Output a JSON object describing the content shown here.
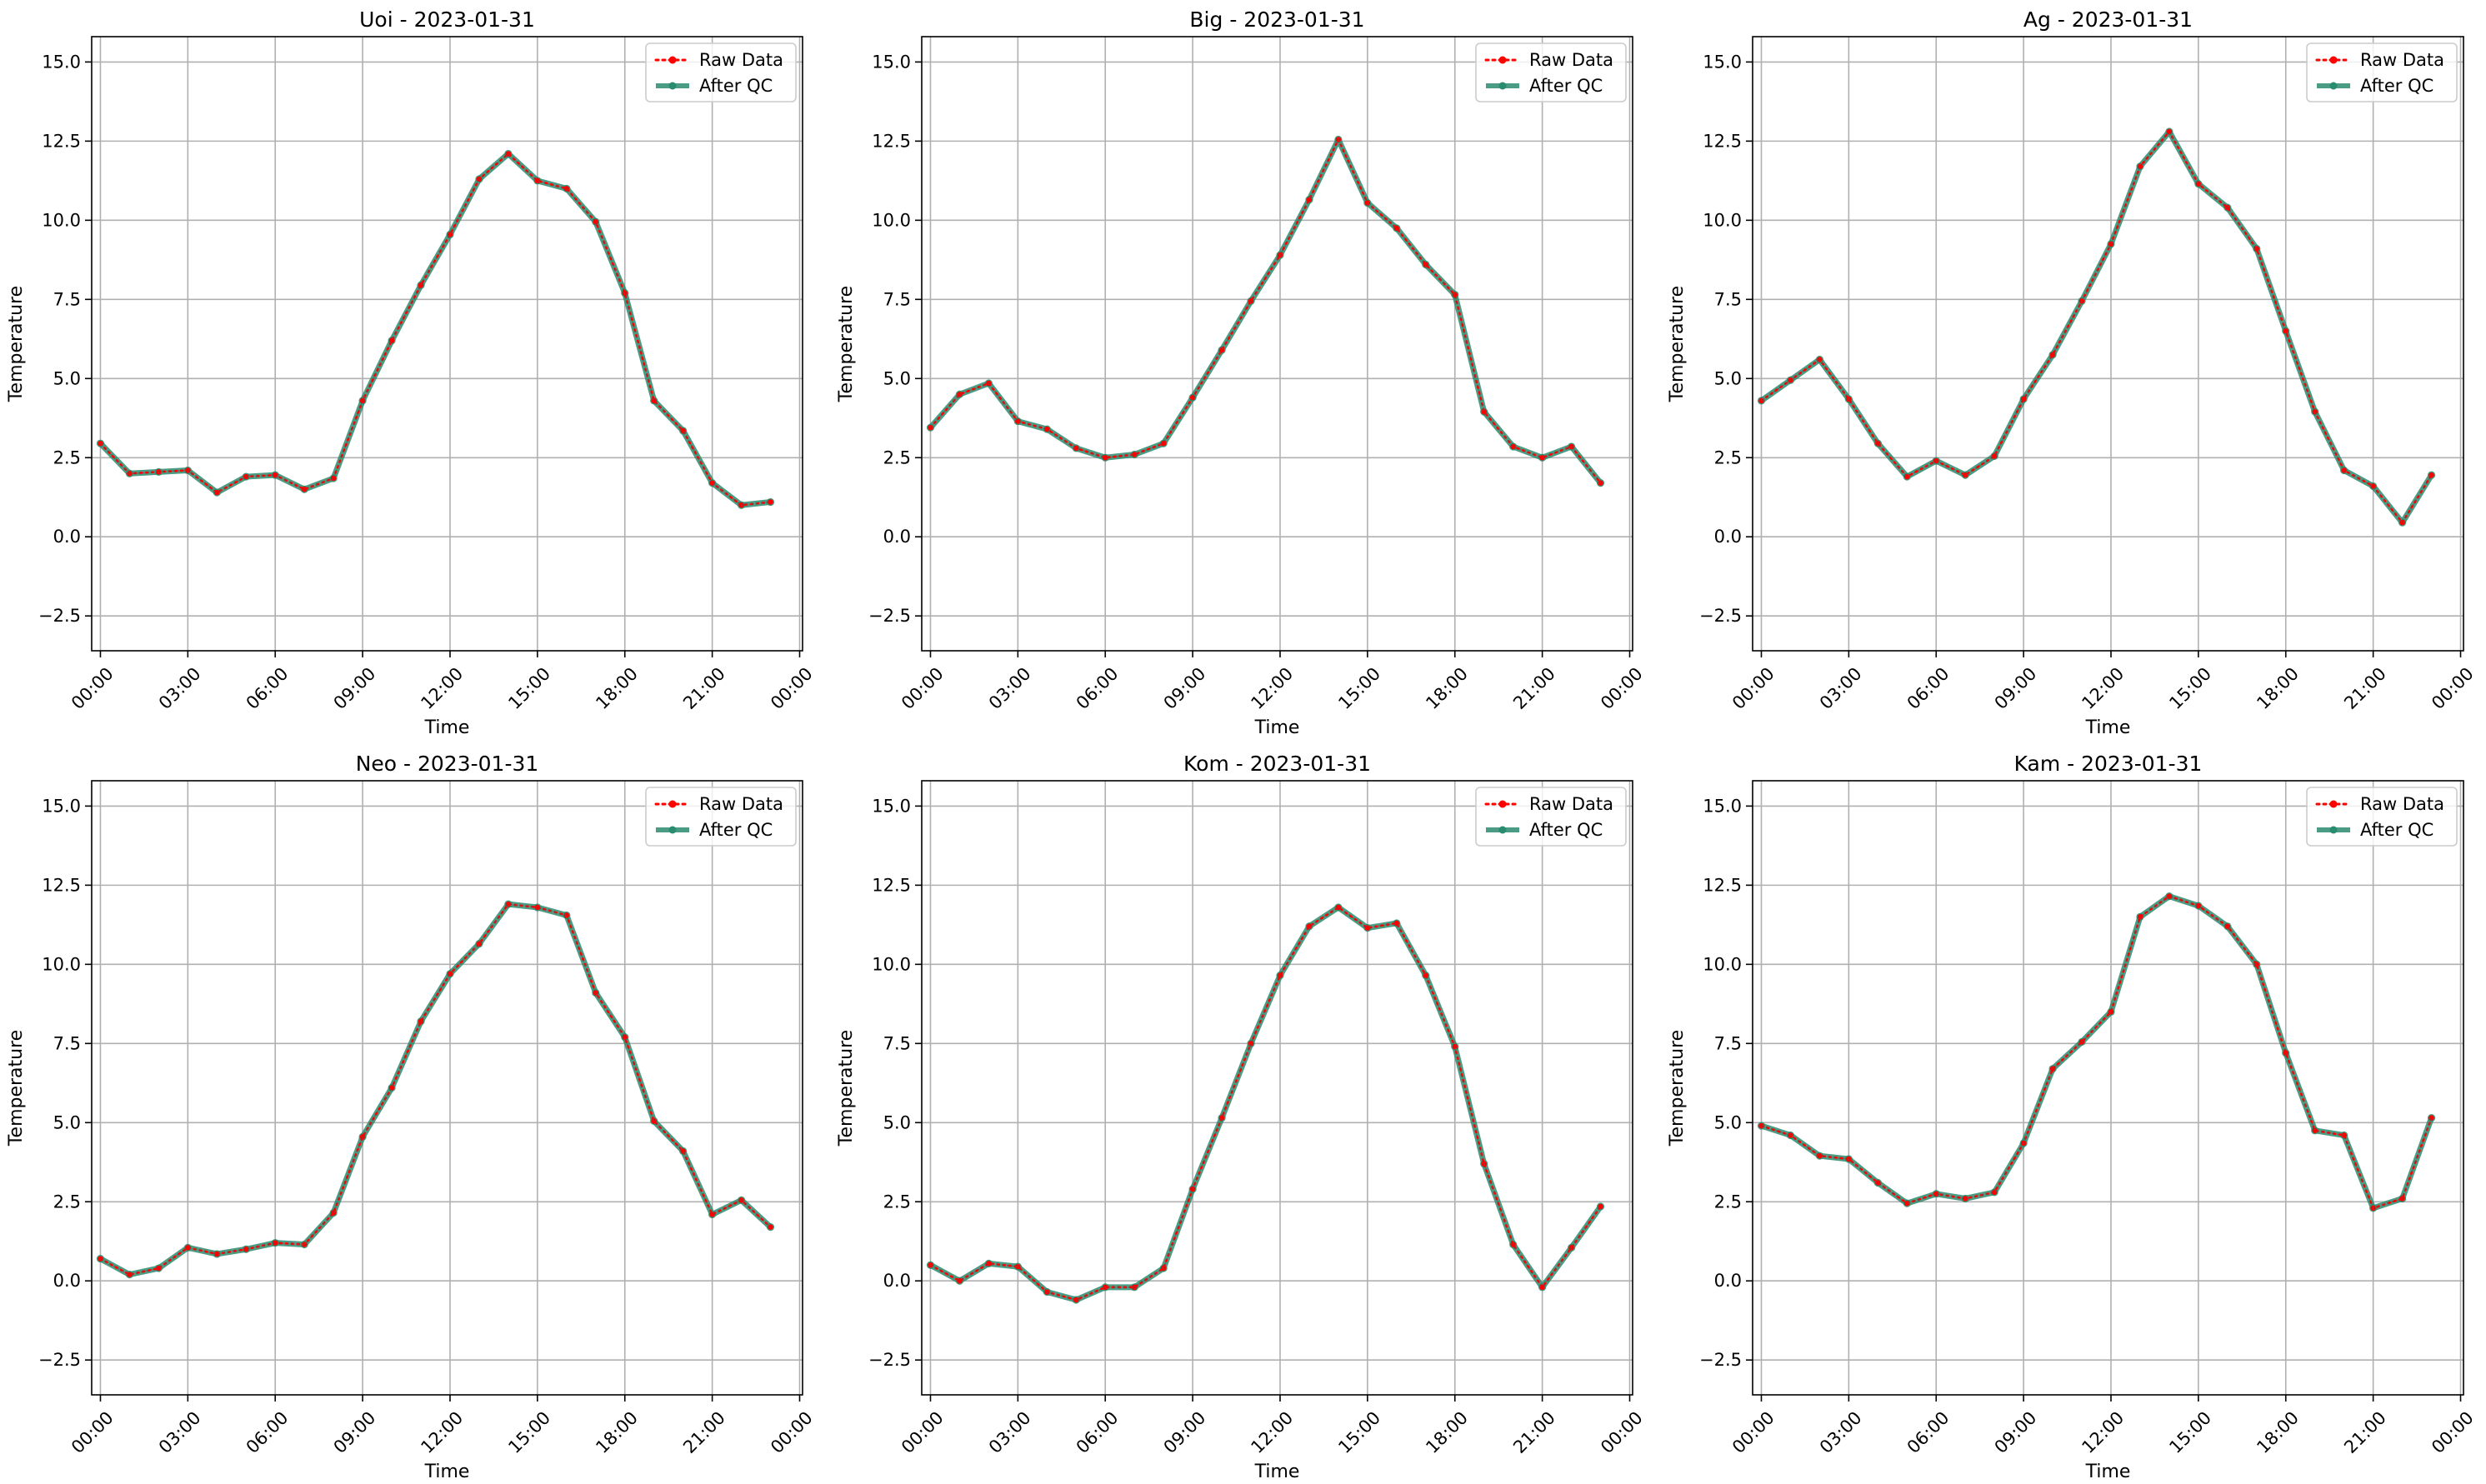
{
  "chart_data": [
    {
      "type": "line",
      "title": "Uoi - 2023-01-31",
      "xlabel": "Time",
      "ylabel": "Temperature",
      "ylim": [
        -3.6,
        15.8
      ],
      "xlim": [
        -0.3,
        24.1
      ],
      "xticks": [
        0,
        3,
        6,
        9,
        12,
        15,
        18,
        21,
        24
      ],
      "xtick_labels": [
        "00:00",
        "03:00",
        "06:00",
        "09:00",
        "12:00",
        "15:00",
        "18:00",
        "21:00",
        "00:00"
      ],
      "yticks": [
        -2.5,
        0.0,
        2.5,
        5.0,
        7.5,
        10.0,
        12.5,
        15.0
      ],
      "ytick_labels": [
        "−2.5",
        "0.0",
        "2.5",
        "5.0",
        "7.5",
        "10.0",
        "12.5",
        "15.0"
      ],
      "grid": true,
      "legend": "top-right",
      "x": [
        0,
        1,
        2,
        3,
        4,
        5,
        6,
        7,
        8,
        9,
        10,
        11,
        12,
        13,
        14,
        15,
        16,
        17,
        18,
        19,
        20,
        21,
        22,
        23
      ],
      "series": [
        {
          "name": "Raw Data",
          "color": "#ff0000",
          "style": "dotted",
          "values": [
            2.95,
            2.0,
            2.05,
            2.1,
            1.4,
            1.9,
            1.95,
            1.5,
            1.85,
            4.3,
            6.2,
            7.95,
            9.55,
            11.3,
            12.1,
            11.25,
            11.0,
            9.95,
            7.7,
            4.3,
            3.35,
            1.7,
            1.0,
            1.1
          ]
        },
        {
          "name": "After QC",
          "color": "#2a8c6e",
          "style": "solid",
          "values": [
            2.95,
            2.0,
            2.05,
            2.1,
            1.4,
            1.9,
            1.95,
            1.5,
            1.85,
            4.3,
            6.2,
            7.95,
            9.55,
            11.3,
            12.1,
            11.25,
            11.0,
            9.95,
            7.7,
            4.3,
            3.35,
            1.7,
            1.0,
            1.1
          ]
        }
      ]
    },
    {
      "type": "line",
      "title": "Big - 2023-01-31",
      "xlabel": "Time",
      "ylabel": "Temperature",
      "ylim": [
        -3.6,
        15.8
      ],
      "xlim": [
        -0.3,
        24.1
      ],
      "xticks": [
        0,
        3,
        6,
        9,
        12,
        15,
        18,
        21,
        24
      ],
      "xtick_labels": [
        "00:00",
        "03:00",
        "06:00",
        "09:00",
        "12:00",
        "15:00",
        "18:00",
        "21:00",
        "00:00"
      ],
      "yticks": [
        -2.5,
        0.0,
        2.5,
        5.0,
        7.5,
        10.0,
        12.5,
        15.0
      ],
      "ytick_labels": [
        "−2.5",
        "0.0",
        "2.5",
        "5.0",
        "7.5",
        "10.0",
        "12.5",
        "15.0"
      ],
      "grid": true,
      "legend": "top-right",
      "x": [
        0,
        1,
        2,
        3,
        4,
        5,
        6,
        7,
        8,
        9,
        10,
        11,
        12,
        13,
        14,
        15,
        16,
        17,
        18,
        19,
        20,
        21,
        22,
        23
      ],
      "series": [
        {
          "name": "Raw Data",
          "color": "#ff0000",
          "style": "dotted",
          "values": [
            3.45,
            4.5,
            4.85,
            3.65,
            3.4,
            2.8,
            2.5,
            2.6,
            2.95,
            4.4,
            5.9,
            7.45,
            8.9,
            10.65,
            12.55,
            10.55,
            9.75,
            8.6,
            7.65,
            3.95,
            2.85,
            2.5,
            2.85,
            1.7
          ]
        },
        {
          "name": "After QC",
          "color": "#2a8c6e",
          "style": "solid",
          "values": [
            3.45,
            4.5,
            4.85,
            3.65,
            3.4,
            2.8,
            2.5,
            2.6,
            2.95,
            4.4,
            5.9,
            7.45,
            8.9,
            10.65,
            12.55,
            10.55,
            9.75,
            8.6,
            7.65,
            3.95,
            2.85,
            2.5,
            2.85,
            1.7
          ]
        }
      ]
    },
    {
      "type": "line",
      "title": "Ag - 2023-01-31",
      "xlabel": "Time",
      "ylabel": "Temperature",
      "ylim": [
        -3.6,
        15.8
      ],
      "xlim": [
        -0.3,
        24.1
      ],
      "xticks": [
        0,
        3,
        6,
        9,
        12,
        15,
        18,
        21,
        24
      ],
      "xtick_labels": [
        "00:00",
        "03:00",
        "06:00",
        "09:00",
        "12:00",
        "15:00",
        "18:00",
        "21:00",
        "00:00"
      ],
      "yticks": [
        -2.5,
        0.0,
        2.5,
        5.0,
        7.5,
        10.0,
        12.5,
        15.0
      ],
      "ytick_labels": [
        "−2.5",
        "0.0",
        "2.5",
        "5.0",
        "7.5",
        "10.0",
        "12.5",
        "15.0"
      ],
      "grid": true,
      "legend": "top-right",
      "x": [
        0,
        1,
        2,
        3,
        4,
        5,
        6,
        7,
        8,
        9,
        10,
        11,
        12,
        13,
        14,
        15,
        16,
        17,
        18,
        19,
        20,
        21,
        22,
        23
      ],
      "series": [
        {
          "name": "Raw Data",
          "color": "#ff0000",
          "style": "dotted",
          "values": [
            4.3,
            4.95,
            5.6,
            4.35,
            2.95,
            1.9,
            2.4,
            1.95,
            2.55,
            4.35,
            5.75,
            7.45,
            9.25,
            11.7,
            12.8,
            11.15,
            10.4,
            9.1,
            6.5,
            3.95,
            2.1,
            1.6,
            0.45,
            1.95
          ]
        },
        {
          "name": "After QC",
          "color": "#2a8c6e",
          "style": "solid",
          "values": [
            4.3,
            4.95,
            5.6,
            4.35,
            2.95,
            1.9,
            2.4,
            1.95,
            2.55,
            4.35,
            5.75,
            7.45,
            9.25,
            11.7,
            12.8,
            11.15,
            10.4,
            9.1,
            6.5,
            3.95,
            2.1,
            1.6,
            0.45,
            1.95
          ]
        }
      ]
    },
    {
      "type": "line",
      "title": "Neo - 2023-01-31",
      "xlabel": "Time",
      "ylabel": "Temperature",
      "ylim": [
        -3.6,
        15.8
      ],
      "xlim": [
        -0.3,
        24.1
      ],
      "xticks": [
        0,
        3,
        6,
        9,
        12,
        15,
        18,
        21,
        24
      ],
      "xtick_labels": [
        "00:00",
        "03:00",
        "06:00",
        "09:00",
        "12:00",
        "15:00",
        "18:00",
        "21:00",
        "00:00"
      ],
      "yticks": [
        -2.5,
        0.0,
        2.5,
        5.0,
        7.5,
        10.0,
        12.5,
        15.0
      ],
      "ytick_labels": [
        "−2.5",
        "0.0",
        "2.5",
        "5.0",
        "7.5",
        "10.0",
        "12.5",
        "15.0"
      ],
      "grid": true,
      "legend": "top-right",
      "x": [
        0,
        1,
        2,
        3,
        4,
        5,
        6,
        7,
        8,
        9,
        10,
        11,
        12,
        13,
        14,
        15,
        16,
        17,
        18,
        19,
        20,
        21,
        22,
        23
      ],
      "series": [
        {
          "name": "Raw Data",
          "color": "#ff0000",
          "style": "dotted",
          "values": [
            0.7,
            0.2,
            0.4,
            1.05,
            0.85,
            1.0,
            1.2,
            1.15,
            2.15,
            4.55,
            6.1,
            8.2,
            9.7,
            10.65,
            11.9,
            11.8,
            11.55,
            9.1,
            7.7,
            5.05,
            4.1,
            2.1,
            2.55,
            1.7
          ]
        },
        {
          "name": "After QC",
          "color": "#2a8c6e",
          "style": "solid",
          "values": [
            0.7,
            0.2,
            0.4,
            1.05,
            0.85,
            1.0,
            1.2,
            1.15,
            2.15,
            4.55,
            6.1,
            8.2,
            9.7,
            10.65,
            11.9,
            11.8,
            11.55,
            9.1,
            7.7,
            5.05,
            4.1,
            2.1,
            2.55,
            1.7
          ]
        }
      ]
    },
    {
      "type": "line",
      "title": "Kom - 2023-01-31",
      "xlabel": "Time",
      "ylabel": "Temperature",
      "ylim": [
        -3.6,
        15.8
      ],
      "xlim": [
        -0.3,
        24.1
      ],
      "xticks": [
        0,
        3,
        6,
        9,
        12,
        15,
        18,
        21,
        24
      ],
      "xtick_labels": [
        "00:00",
        "03:00",
        "06:00",
        "09:00",
        "12:00",
        "15:00",
        "18:00",
        "21:00",
        "00:00"
      ],
      "yticks": [
        -2.5,
        0.0,
        2.5,
        5.0,
        7.5,
        10.0,
        12.5,
        15.0
      ],
      "ytick_labels": [
        "−2.5",
        "0.0",
        "2.5",
        "5.0",
        "7.5",
        "10.0",
        "12.5",
        "15.0"
      ],
      "grid": true,
      "legend": "top-right",
      "x": [
        0,
        1,
        2,
        3,
        4,
        5,
        6,
        7,
        8,
        9,
        10,
        11,
        12,
        13,
        14,
        15,
        16,
        17,
        18,
        19,
        20,
        21,
        22,
        23
      ],
      "series": [
        {
          "name": "Raw Data",
          "color": "#ff0000",
          "style": "dotted",
          "values": [
            0.5,
            0.0,
            0.55,
            0.45,
            -0.35,
            -0.6,
            -0.2,
            -0.2,
            0.4,
            2.9,
            5.15,
            7.5,
            9.65,
            11.2,
            11.8,
            11.15,
            11.3,
            9.65,
            7.4,
            3.7,
            1.15,
            -0.2,
            1.05,
            2.35
          ]
        },
        {
          "name": "After QC",
          "color": "#2a8c6e",
          "style": "solid",
          "values": [
            0.5,
            0.0,
            0.55,
            0.45,
            -0.35,
            -0.6,
            -0.2,
            -0.2,
            0.4,
            2.9,
            5.15,
            7.5,
            9.65,
            11.2,
            11.8,
            11.15,
            11.3,
            9.65,
            7.4,
            3.7,
            1.15,
            -0.2,
            1.05,
            2.35
          ]
        }
      ]
    },
    {
      "type": "line",
      "title": "Kam - 2023-01-31",
      "xlabel": "Time",
      "ylabel": "Temperature",
      "ylim": [
        -3.6,
        15.8
      ],
      "xlim": [
        -0.3,
        24.1
      ],
      "xticks": [
        0,
        3,
        6,
        9,
        12,
        15,
        18,
        21,
        24
      ],
      "xtick_labels": [
        "00:00",
        "03:00",
        "06:00",
        "09:00",
        "12:00",
        "15:00",
        "18:00",
        "21:00",
        "00:00"
      ],
      "yticks": [
        -2.5,
        0.0,
        2.5,
        5.0,
        7.5,
        10.0,
        12.5,
        15.0
      ],
      "ytick_labels": [
        "−2.5",
        "0.0",
        "2.5",
        "5.0",
        "7.5",
        "10.0",
        "12.5",
        "15.0"
      ],
      "grid": true,
      "legend": "top-right",
      "x": [
        0,
        1,
        2,
        3,
        4,
        5,
        6,
        7,
        8,
        9,
        10,
        11,
        12,
        13,
        14,
        15,
        16,
        17,
        18,
        19,
        20,
        21,
        22,
        23
      ],
      "series": [
        {
          "name": "Raw Data",
          "color": "#ff0000",
          "style": "dotted",
          "values": [
            4.9,
            4.6,
            3.95,
            3.85,
            3.1,
            2.45,
            2.75,
            2.6,
            2.8,
            4.35,
            6.7,
            7.55,
            8.5,
            11.5,
            12.15,
            11.85,
            11.2,
            10.0,
            7.2,
            4.75,
            4.6,
            2.3,
            2.6,
            5.15
          ]
        },
        {
          "name": "After QC",
          "color": "#2a8c6e",
          "style": "solid",
          "values": [
            4.9,
            4.6,
            3.95,
            3.85,
            3.1,
            2.45,
            2.75,
            2.6,
            2.8,
            4.35,
            6.7,
            7.55,
            8.5,
            11.5,
            12.15,
            11.85,
            11.2,
            10.0,
            7.2,
            4.75,
            4.6,
            2.3,
            2.6,
            5.15
          ]
        }
      ]
    }
  ]
}
